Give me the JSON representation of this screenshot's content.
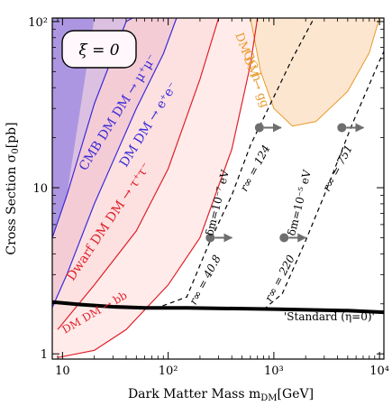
{
  "chart_data": {
    "type": "line",
    "title": "",
    "xlabel": "Dark Matter Mass  m",
    "xlabel_sub": "DM",
    "xlabel_unit": "[GeV]",
    "ylabel": "Cross Section  σ",
    "ylabel_sub": "0",
    "ylabel_unit": "[pb]",
    "xscale": "log",
    "yscale": "log",
    "xlim": [
      8,
      11000
    ],
    "ylim": [
      0.93,
      105
    ],
    "grid": false,
    "x_ticks": [
      {
        "value": 10,
        "label": "10"
      },
      {
        "value": 100,
        "label": "10²"
      },
      {
        "value": 1000,
        "label": "10³"
      },
      {
        "value": 10000,
        "label": "10⁴"
      }
    ],
    "y_ticks": [
      {
        "value": 1,
        "label": "1"
      },
      {
        "value": 10,
        "label": "10"
      },
      {
        "value": 100,
        "label": "10²"
      }
    ],
    "legend_box": {
      "text": "ξ = 0",
      "placement": "top-left"
    },
    "colors": {
      "cmb_fill": "#a58ee0",
      "mumu_fill": "#dcc0e2",
      "ee_fill": "#f4ccd6",
      "tautau_fill": "#fde1e1",
      "bb_fill": "#ffecea",
      "gc_fill": "#fde6cf",
      "blue_line": "#3a2bd6",
      "red_line": "#e0202a",
      "orange_line": "#e89a2c",
      "standard_line": "#000000",
      "dashed_line": "#000000",
      "marker": "#6e6e6e"
    },
    "series": [
      {
        "name": "CMB  DM DM → μ⁺μ⁻",
        "kind": "band_edge",
        "points": [
          [
            8,
            5.0
          ],
          [
            11,
            9.0
          ],
          [
            20,
            32
          ],
          [
            40,
            100
          ],
          [
            46,
            105
          ]
        ]
      },
      {
        "name": "DM DM → e⁺e⁻",
        "kind": "band_edge",
        "points": [
          [
            8,
            1.9
          ],
          [
            11,
            3.0
          ],
          [
            20,
            8.0
          ],
          [
            50,
            30
          ],
          [
            90,
            64
          ],
          [
            120,
            105
          ]
        ]
      },
      {
        "name": "DM DM → τ⁺τ⁻",
        "kind": "band_edge",
        "points": [
          [
            9,
            1.4
          ],
          [
            20,
            2.6
          ],
          [
            50,
            5.5
          ],
          [
            100,
            13
          ],
          [
            200,
            45
          ],
          [
            300,
            105
          ]
        ]
      },
      {
        "name": "Dwarf  DM DM → bb",
        "kind": "band_edge",
        "points": [
          [
            9,
            0.95
          ],
          [
            20,
            1.05
          ],
          [
            40,
            1.4
          ],
          [
            100,
            2.6
          ],
          [
            200,
            5
          ],
          [
            400,
            17
          ],
          [
            600,
            55
          ],
          [
            700,
            105
          ]
        ]
      },
      {
        "name": "GC h  DM DM → gg",
        "kind": "closed_region",
        "points": [
          [
            600,
            105
          ],
          [
            750,
            50
          ],
          [
            1000,
            30
          ],
          [
            1500,
            23.5
          ],
          [
            2500,
            25
          ],
          [
            5000,
            38
          ],
          [
            8000,
            65
          ],
          [
            10000,
            105
          ]
        ]
      },
      {
        "name": "'Standard (η=0)'",
        "kind": "solid",
        "points": [
          [
            8,
            2.05
          ],
          [
            15,
            1.98
          ],
          [
            30,
            1.92
          ],
          [
            60,
            1.89
          ],
          [
            150,
            1.89
          ],
          [
            1000,
            1.86
          ],
          [
            5000,
            1.82
          ],
          [
            11000,
            1.78
          ]
        ]
      },
      {
        "name": "δm=10⁻⁷ eV",
        "kind": "dashed",
        "points": [
          [
            75,
            1.87
          ],
          [
            150,
            2.2
          ],
          [
            250,
            4.8
          ],
          [
            400,
            9
          ],
          [
            600,
            18
          ],
          [
            1500,
            60
          ],
          [
            2400,
            105
          ]
        ]
      },
      {
        "name": "δm=10⁻⁵ eV",
        "kind": "dashed",
        "points": [
          [
            800,
            1.85
          ],
          [
            1200,
            2.3
          ],
          [
            2000,
            4.8
          ],
          [
            3000,
            9
          ],
          [
            5500,
            24
          ],
          [
            10000,
            58
          ],
          [
            11000,
            66
          ]
        ]
      }
    ],
    "markers": [
      {
        "x": 250,
        "y": 5.0,
        "label": "r∞ = 40.8"
      },
      {
        "x": 730,
        "y": 23,
        "label": "r∞ = 124"
      },
      {
        "x": 1250,
        "y": 5.0,
        "label": "r∞ = 220"
      },
      {
        "x": 4400,
        "y": 23,
        "label": "r∞ = 751"
      }
    ],
    "annotations": [
      {
        "text": "CMB  DM DM → μ⁺μ⁻",
        "color": "#3a2bd6"
      },
      {
        "text": "DM DM → e⁺e⁻",
        "color": "#3a2bd6"
      },
      {
        "text": "Dwarf  DM DM → τ⁺τ⁻",
        "color": "#e0202a"
      },
      {
        "text": "DM DM → bb",
        "color": "#e0202a"
      },
      {
        "text": "GC h",
        "color": "#e89a2c"
      },
      {
        "text": "DM DM → gg",
        "color": "#e89a2c"
      },
      {
        "text": "δm=10⁻⁷ eV",
        "color": "#000000"
      },
      {
        "text": "δm=10⁻⁵ eV",
        "color": "#000000"
      },
      {
        "text": "'Standard (η=0)'",
        "color": "#000000"
      }
    ]
  }
}
